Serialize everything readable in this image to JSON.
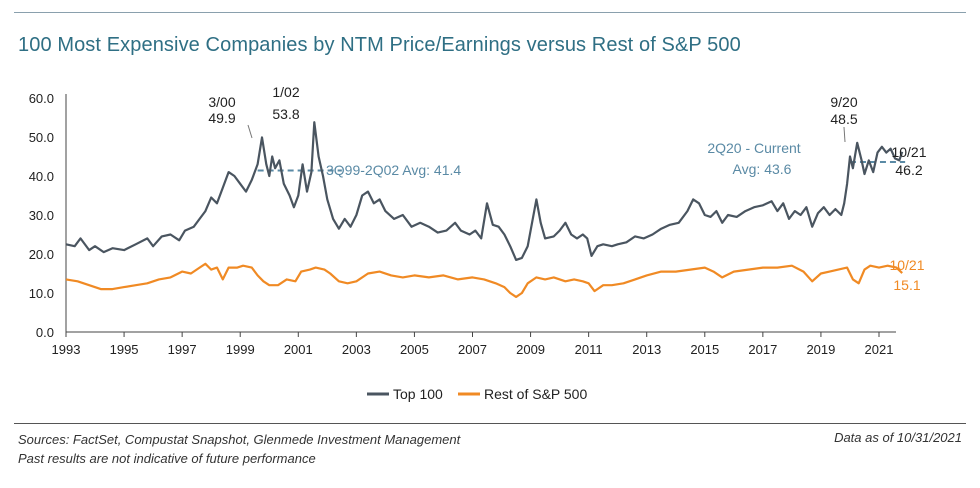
{
  "title": "100 Most Expensive Companies by NTM Price/Earnings versus Rest of S&P 500",
  "footer": {
    "sources": "Sources: FactSet, Compustat Snapshot, Glenmede Investment Management",
    "disclaimer": "Past results are not indicative of future performance",
    "as_of": "Data as of 10/31/2021"
  },
  "colors": {
    "top100": "#4a5560",
    "rest": "#f08a24",
    "avg": "#5a8aa5",
    "title": "#2f6f84"
  },
  "chart_data": {
    "type": "line",
    "xlim": [
      1993,
      2021.9
    ],
    "ylim": [
      0,
      60
    ],
    "grid": false,
    "legend_position": "bottom-center",
    "x_ticks": [
      "1993",
      "1995",
      "1997",
      "1999",
      "2001",
      "2003",
      "2005",
      "2007",
      "2009",
      "2011",
      "2013",
      "2015",
      "2017",
      "2019",
      "2021"
    ],
    "y_ticks": [
      "0.0",
      "10.0",
      "20.0",
      "30.0",
      "40.0",
      "50.0",
      "60.0"
    ],
    "series": [
      {
        "name": "Top 100",
        "color": "#4a5560",
        "points": [
          [
            1993.0,
            22.5
          ],
          [
            1993.3,
            22.0
          ],
          [
            1993.5,
            24.0
          ],
          [
            1993.8,
            21.0
          ],
          [
            1994.0,
            22.0
          ],
          [
            1994.3,
            20.5
          ],
          [
            1994.6,
            21.5
          ],
          [
            1995.0,
            21.0
          ],
          [
            1995.4,
            22.5
          ],
          [
            1995.8,
            24.0
          ],
          [
            1996.0,
            22.0
          ],
          [
            1996.3,
            24.5
          ],
          [
            1996.6,
            25.0
          ],
          [
            1996.9,
            23.5
          ],
          [
            1997.1,
            26.0
          ],
          [
            1997.4,
            27.0
          ],
          [
            1997.6,
            29.0
          ],
          [
            1997.8,
            31.0
          ],
          [
            1998.0,
            34.5
          ],
          [
            1998.2,
            33.0
          ],
          [
            1998.4,
            37.0
          ],
          [
            1998.6,
            41.0
          ],
          [
            1998.8,
            40.0
          ],
          [
            1999.0,
            38.0
          ],
          [
            1999.2,
            36.0
          ],
          [
            1999.4,
            39.0
          ],
          [
            1999.6,
            43.0
          ],
          [
            1999.75,
            49.9
          ],
          [
            1999.9,
            43.0
          ],
          [
            2000.0,
            40.0
          ],
          [
            2000.1,
            45.0
          ],
          [
            2000.2,
            42.0
          ],
          [
            2000.35,
            44.0
          ],
          [
            2000.5,
            38.0
          ],
          [
            2000.7,
            35.0
          ],
          [
            2000.85,
            32.0
          ],
          [
            2001.0,
            35.0
          ],
          [
            2001.15,
            43.0
          ],
          [
            2001.3,
            36.0
          ],
          [
            2001.45,
            41.0
          ],
          [
            2001.55,
            53.8
          ],
          [
            2001.7,
            45.0
          ],
          [
            2001.85,
            40.0
          ],
          [
            2002.0,
            34.0
          ],
          [
            2002.2,
            29.0
          ],
          [
            2002.4,
            26.5
          ],
          [
            2002.6,
            29.0
          ],
          [
            2002.8,
            27.0
          ],
          [
            2003.0,
            30.0
          ],
          [
            2003.2,
            35.0
          ],
          [
            2003.4,
            36.0
          ],
          [
            2003.6,
            33.0
          ],
          [
            2003.8,
            34.0
          ],
          [
            2004.0,
            31.0
          ],
          [
            2004.3,
            29.0
          ],
          [
            2004.6,
            30.0
          ],
          [
            2004.9,
            27.0
          ],
          [
            2005.2,
            28.0
          ],
          [
            2005.5,
            27.0
          ],
          [
            2005.8,
            25.5
          ],
          [
            2006.1,
            26.0
          ],
          [
            2006.4,
            28.0
          ],
          [
            2006.6,
            26.0
          ],
          [
            2006.9,
            25.0
          ],
          [
            2007.1,
            26.0
          ],
          [
            2007.3,
            24.0
          ],
          [
            2007.5,
            33.0
          ],
          [
            2007.7,
            27.5
          ],
          [
            2007.9,
            27.0
          ],
          [
            2008.1,
            25.0
          ],
          [
            2008.3,
            22.0
          ],
          [
            2008.5,
            18.5
          ],
          [
            2008.7,
            19.0
          ],
          [
            2008.9,
            22.0
          ],
          [
            2009.0,
            26.0
          ],
          [
            2009.2,
            34.0
          ],
          [
            2009.35,
            28.0
          ],
          [
            2009.5,
            24.0
          ],
          [
            2009.8,
            24.5
          ],
          [
            2010.0,
            26.0
          ],
          [
            2010.2,
            28.0
          ],
          [
            2010.4,
            25.0
          ],
          [
            2010.6,
            24.0
          ],
          [
            2010.8,
            25.0
          ],
          [
            2010.95,
            24.0
          ],
          [
            2011.1,
            19.5
          ],
          [
            2011.3,
            22.0
          ],
          [
            2011.5,
            22.5
          ],
          [
            2011.8,
            22.0
          ],
          [
            2012.0,
            22.5
          ],
          [
            2012.3,
            23.0
          ],
          [
            2012.6,
            24.5
          ],
          [
            2012.9,
            24.0
          ],
          [
            2013.2,
            25.0
          ],
          [
            2013.5,
            26.5
          ],
          [
            2013.8,
            27.5
          ],
          [
            2014.1,
            28.0
          ],
          [
            2014.4,
            31.0
          ],
          [
            2014.6,
            34.0
          ],
          [
            2014.8,
            33.0
          ],
          [
            2015.0,
            30.0
          ],
          [
            2015.2,
            29.5
          ],
          [
            2015.4,
            31.0
          ],
          [
            2015.6,
            28.0
          ],
          [
            2015.8,
            30.0
          ],
          [
            2016.1,
            29.5
          ],
          [
            2016.4,
            31.0
          ],
          [
            2016.7,
            32.0
          ],
          [
            2017.0,
            32.5
          ],
          [
            2017.3,
            33.5
          ],
          [
            2017.5,
            31.0
          ],
          [
            2017.7,
            33.0
          ],
          [
            2017.9,
            29.0
          ],
          [
            2018.1,
            31.0
          ],
          [
            2018.3,
            30.0
          ],
          [
            2018.5,
            32.0
          ],
          [
            2018.7,
            27.0
          ],
          [
            2018.9,
            30.5
          ],
          [
            2019.1,
            32.0
          ],
          [
            2019.3,
            30.0
          ],
          [
            2019.5,
            31.5
          ],
          [
            2019.7,
            30.0
          ],
          [
            2019.8,
            33.0
          ],
          [
            2019.9,
            38.0
          ],
          [
            2020.0,
            45.0
          ],
          [
            2020.1,
            42.0
          ],
          [
            2020.25,
            48.5
          ],
          [
            2020.4,
            44.0
          ],
          [
            2020.5,
            40.5
          ],
          [
            2020.65,
            44.0
          ],
          [
            2020.8,
            41.0
          ],
          [
            2020.95,
            46.0
          ],
          [
            2021.1,
            47.5
          ],
          [
            2021.25,
            46.0
          ],
          [
            2021.4,
            47.0
          ],
          [
            2021.55,
            44.5
          ],
          [
            2021.7,
            44.0
          ],
          [
            2021.8,
            46.2
          ]
        ]
      },
      {
        "name": "Rest of S&P 500",
        "color": "#f08a24",
        "points": [
          [
            1993.0,
            13.5
          ],
          [
            1993.4,
            13.0
          ],
          [
            1993.8,
            12.0
          ],
          [
            1994.2,
            11.0
          ],
          [
            1994.6,
            11.0
          ],
          [
            1995.0,
            11.5
          ],
          [
            1995.4,
            12.0
          ],
          [
            1995.8,
            12.5
          ],
          [
            1996.2,
            13.5
          ],
          [
            1996.6,
            14.0
          ],
          [
            1997.0,
            15.5
          ],
          [
            1997.3,
            15.0
          ],
          [
            1997.6,
            16.5
          ],
          [
            1997.8,
            17.5
          ],
          [
            1998.0,
            16.0
          ],
          [
            1998.2,
            16.5
          ],
          [
            1998.4,
            13.5
          ],
          [
            1998.6,
            16.5
          ],
          [
            1998.9,
            16.5
          ],
          [
            1999.1,
            17.0
          ],
          [
            1999.4,
            16.5
          ],
          [
            1999.6,
            14.5
          ],
          [
            1999.8,
            13.0
          ],
          [
            2000.0,
            12.0
          ],
          [
            2000.3,
            12.0
          ],
          [
            2000.6,
            13.5
          ],
          [
            2000.9,
            13.0
          ],
          [
            2001.1,
            15.5
          ],
          [
            2001.4,
            16.0
          ],
          [
            2001.6,
            16.5
          ],
          [
            2001.9,
            16.0
          ],
          [
            2002.1,
            15.0
          ],
          [
            2002.4,
            13.0
          ],
          [
            2002.7,
            12.5
          ],
          [
            2003.0,
            13.0
          ],
          [
            2003.4,
            15.0
          ],
          [
            2003.8,
            15.5
          ],
          [
            2004.2,
            14.5
          ],
          [
            2004.6,
            14.0
          ],
          [
            2005.0,
            14.5
          ],
          [
            2005.5,
            14.0
          ],
          [
            2006.0,
            14.5
          ],
          [
            2006.5,
            13.5
          ],
          [
            2007.0,
            14.0
          ],
          [
            2007.4,
            13.5
          ],
          [
            2007.8,
            12.5
          ],
          [
            2008.1,
            11.5
          ],
          [
            2008.3,
            10.0
          ],
          [
            2008.5,
            9.0
          ],
          [
            2008.7,
            10.0
          ],
          [
            2008.9,
            12.5
          ],
          [
            2009.2,
            14.0
          ],
          [
            2009.5,
            13.5
          ],
          [
            2009.8,
            14.0
          ],
          [
            2010.2,
            13.0
          ],
          [
            2010.5,
            13.5
          ],
          [
            2010.8,
            13.0
          ],
          [
            2011.0,
            12.5
          ],
          [
            2011.2,
            10.5
          ],
          [
            2011.5,
            12.0
          ],
          [
            2011.8,
            12.0
          ],
          [
            2012.2,
            12.5
          ],
          [
            2012.6,
            13.5
          ],
          [
            2013.0,
            14.5
          ],
          [
            2013.5,
            15.5
          ],
          [
            2014.0,
            15.5
          ],
          [
            2014.5,
            16.0
          ],
          [
            2015.0,
            16.5
          ],
          [
            2015.3,
            15.5
          ],
          [
            2015.6,
            14.0
          ],
          [
            2016.0,
            15.5
          ],
          [
            2016.5,
            16.0
          ],
          [
            2017.0,
            16.5
          ],
          [
            2017.5,
            16.5
          ],
          [
            2018.0,
            17.0
          ],
          [
            2018.4,
            15.5
          ],
          [
            2018.7,
            13.0
          ],
          [
            2019.0,
            15.0
          ],
          [
            2019.3,
            15.5
          ],
          [
            2019.6,
            16.0
          ],
          [
            2019.9,
            16.5
          ],
          [
            2020.1,
            13.5
          ],
          [
            2020.3,
            12.5
          ],
          [
            2020.5,
            16.0
          ],
          [
            2020.7,
            17.0
          ],
          [
            2021.0,
            16.5
          ],
          [
            2021.3,
            17.0
          ],
          [
            2021.6,
            16.5
          ],
          [
            2021.8,
            15.1
          ]
        ]
      }
    ],
    "averages": [
      {
        "label": "3Q99-2Q02 Avg: 41.4",
        "value": 41.4,
        "x_start": 1999.6,
        "x_end": 2002.5
      },
      {
        "label_line1": "2Q20 - Current",
        "label_line2": "Avg: 43.6",
        "value": 43.6,
        "x_start": 2020.0,
        "x_end": 2021.9
      }
    ],
    "annotations": [
      {
        "date": "3/00",
        "value": "49.9"
      },
      {
        "date": "1/02",
        "value": "53.8"
      },
      {
        "date": "9/20",
        "value": "48.5"
      },
      {
        "date": "10/21",
        "value": "46.2"
      },
      {
        "date": "10/21",
        "value": "15.1"
      }
    ]
  }
}
